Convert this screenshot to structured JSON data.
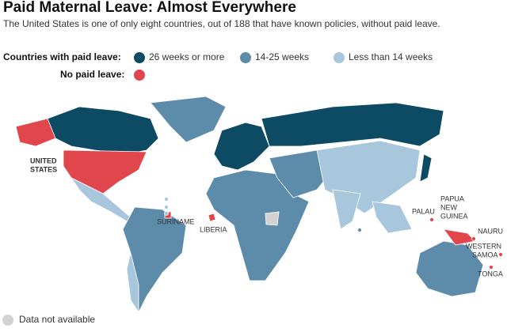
{
  "header": {
    "title": "Paid Maternal Leave: Almost Everywhere",
    "subtitle": "The United States is one of only eight countries, out of 188 that have known policies, without paid leave."
  },
  "legend": {
    "paid_label": "Countries with paid leave:",
    "paid_items": [
      {
        "label": "26 weeks or more",
        "color": "#0d4a64"
      },
      {
        "label": "14-25 weeks",
        "color": "#5d8cab"
      },
      {
        "label": "Less than 14 weeks",
        "color": "#a8c7dc"
      }
    ],
    "no_paid_label": "No paid leave:",
    "no_paid_color": "#e0464c",
    "na_label": "Data not available",
    "na_color": "#d2d2d2"
  },
  "map": {
    "labels": [
      {
        "lines": [
          "UNITED",
          "STATES"
        ]
      },
      {
        "lines": [
          "SURINAME"
        ]
      },
      {
        "lines": [
          "LIBERIA"
        ]
      },
      {
        "lines": [
          "PAPUA",
          "NEW",
          "GUINEA"
        ]
      },
      {
        "lines": [
          "PALAU"
        ]
      },
      {
        "lines": [
          "NAURU"
        ]
      },
      {
        "lines": [
          "WESTERN",
          "SAMOA"
        ]
      },
      {
        "lines": [
          "TONGA"
        ]
      }
    ]
  }
}
